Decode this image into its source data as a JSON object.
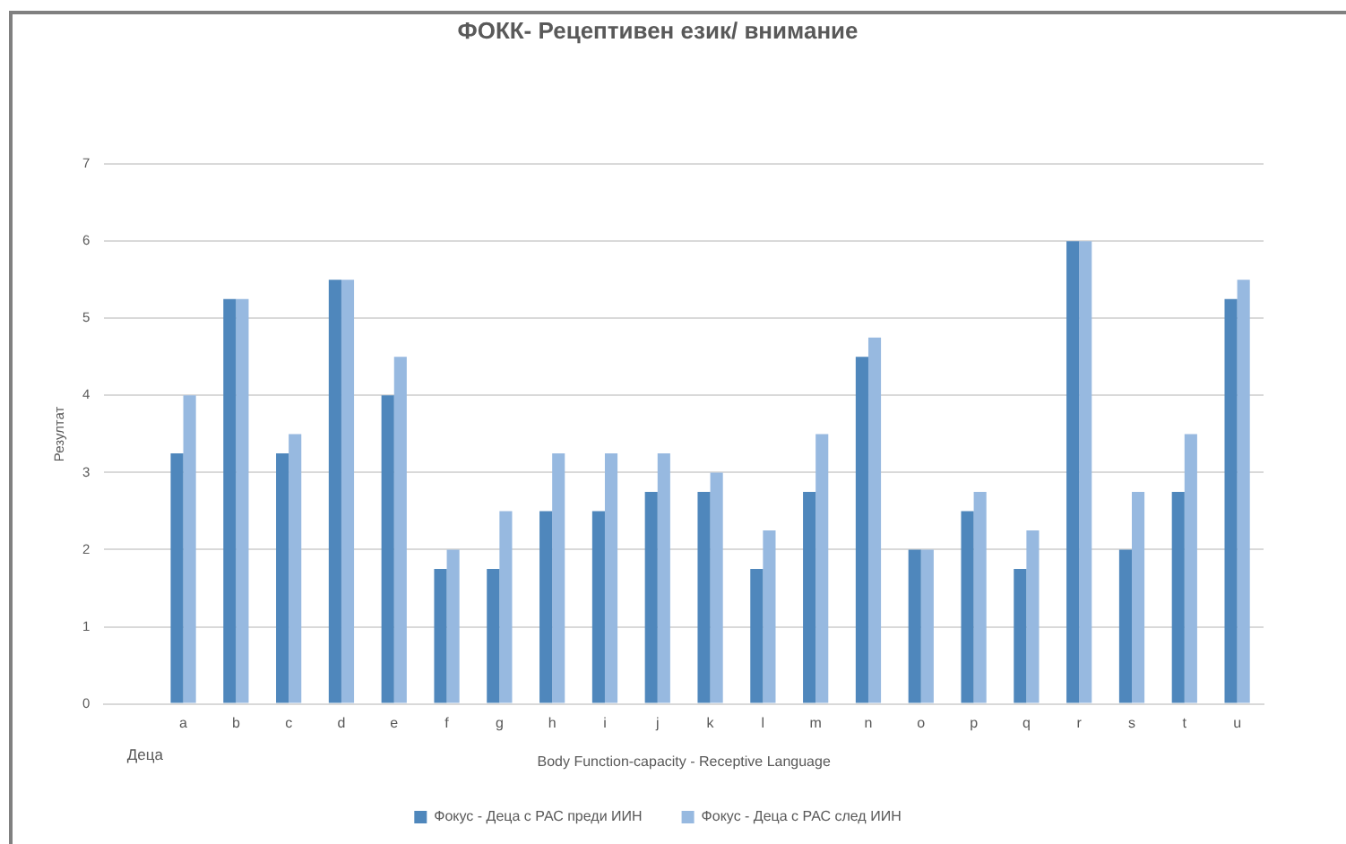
{
  "chart_data": {
    "type": "bar",
    "title": "ФОКК- Рецептивен език/ внимание",
    "ylabel": "Резултат",
    "xlabel": "Body Function-capacity - Receptive Language",
    "annotations": [
      "Деца"
    ],
    "categories": [
      null,
      "a",
      "b",
      "c",
      "d",
      "e",
      "f",
      "g",
      "h",
      "i",
      "j",
      "k",
      "l",
      "m",
      "n",
      "o",
      "p",
      "q",
      "r",
      "s",
      "t",
      "u"
    ],
    "series": [
      {
        "name": "Фокус - Деца с РАС преди ИИН",
        "color": "#4f87bc",
        "values": [
          null,
          3.25,
          5.25,
          3.25,
          5.5,
          4,
          1.75,
          1.75,
          2.5,
          2.5,
          2.75,
          2.75,
          1.75,
          2.75,
          4.5,
          2,
          2.5,
          1.75,
          6,
          2,
          2.75,
          5.25
        ]
      },
      {
        "name": "Фокус - Деца с РАС след ИИН",
        "color": "#97b9e0",
        "values": [
          null,
          4,
          5.25,
          3.5,
          5.5,
          4.5,
          2,
          2.5,
          3.25,
          3.25,
          3.25,
          3,
          2.25,
          3.5,
          4.75,
          2,
          2.75,
          2.25,
          6,
          2.75,
          3.5,
          5.5
        ]
      }
    ],
    "ylim": [
      0,
      7
    ],
    "yticks": [
      0,
      1,
      2,
      3,
      4,
      5,
      6,
      7
    ],
    "grid": "y",
    "legend": "bottom"
  }
}
